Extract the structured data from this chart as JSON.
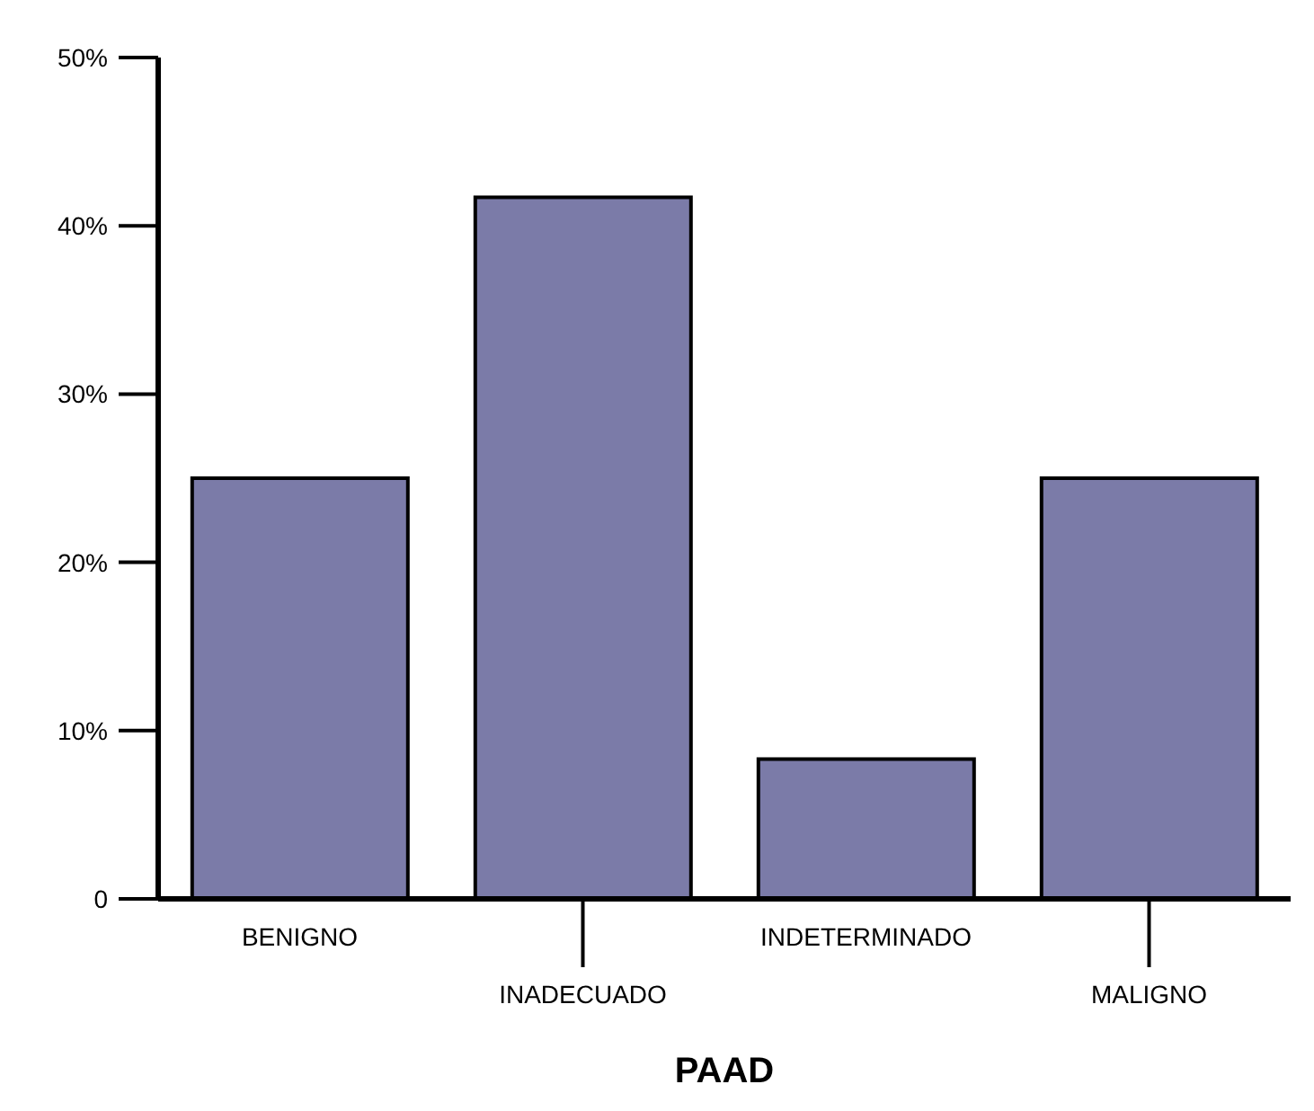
{
  "chart_data": {
    "type": "bar",
    "xlabel": "PAAD",
    "categories": [
      "BENIGNO",
      "INADECUADO",
      "INDETERMINADO",
      "MALIGNO"
    ],
    "values": [
      25,
      41.7,
      8.3,
      25
    ],
    "color": "#7b7ba8",
    "ylim": [
      0,
      50
    ],
    "yticks": [
      {
        "value": 0,
        "label": "0"
      },
      {
        "value": 10,
        "label": "10%"
      },
      {
        "value": 20,
        "label": "20%"
      },
      {
        "value": 30,
        "label": "30%"
      },
      {
        "value": 40,
        "label": "40%"
      },
      {
        "value": 50,
        "label": "50%"
      }
    ],
    "grid": false,
    "legend": false
  }
}
